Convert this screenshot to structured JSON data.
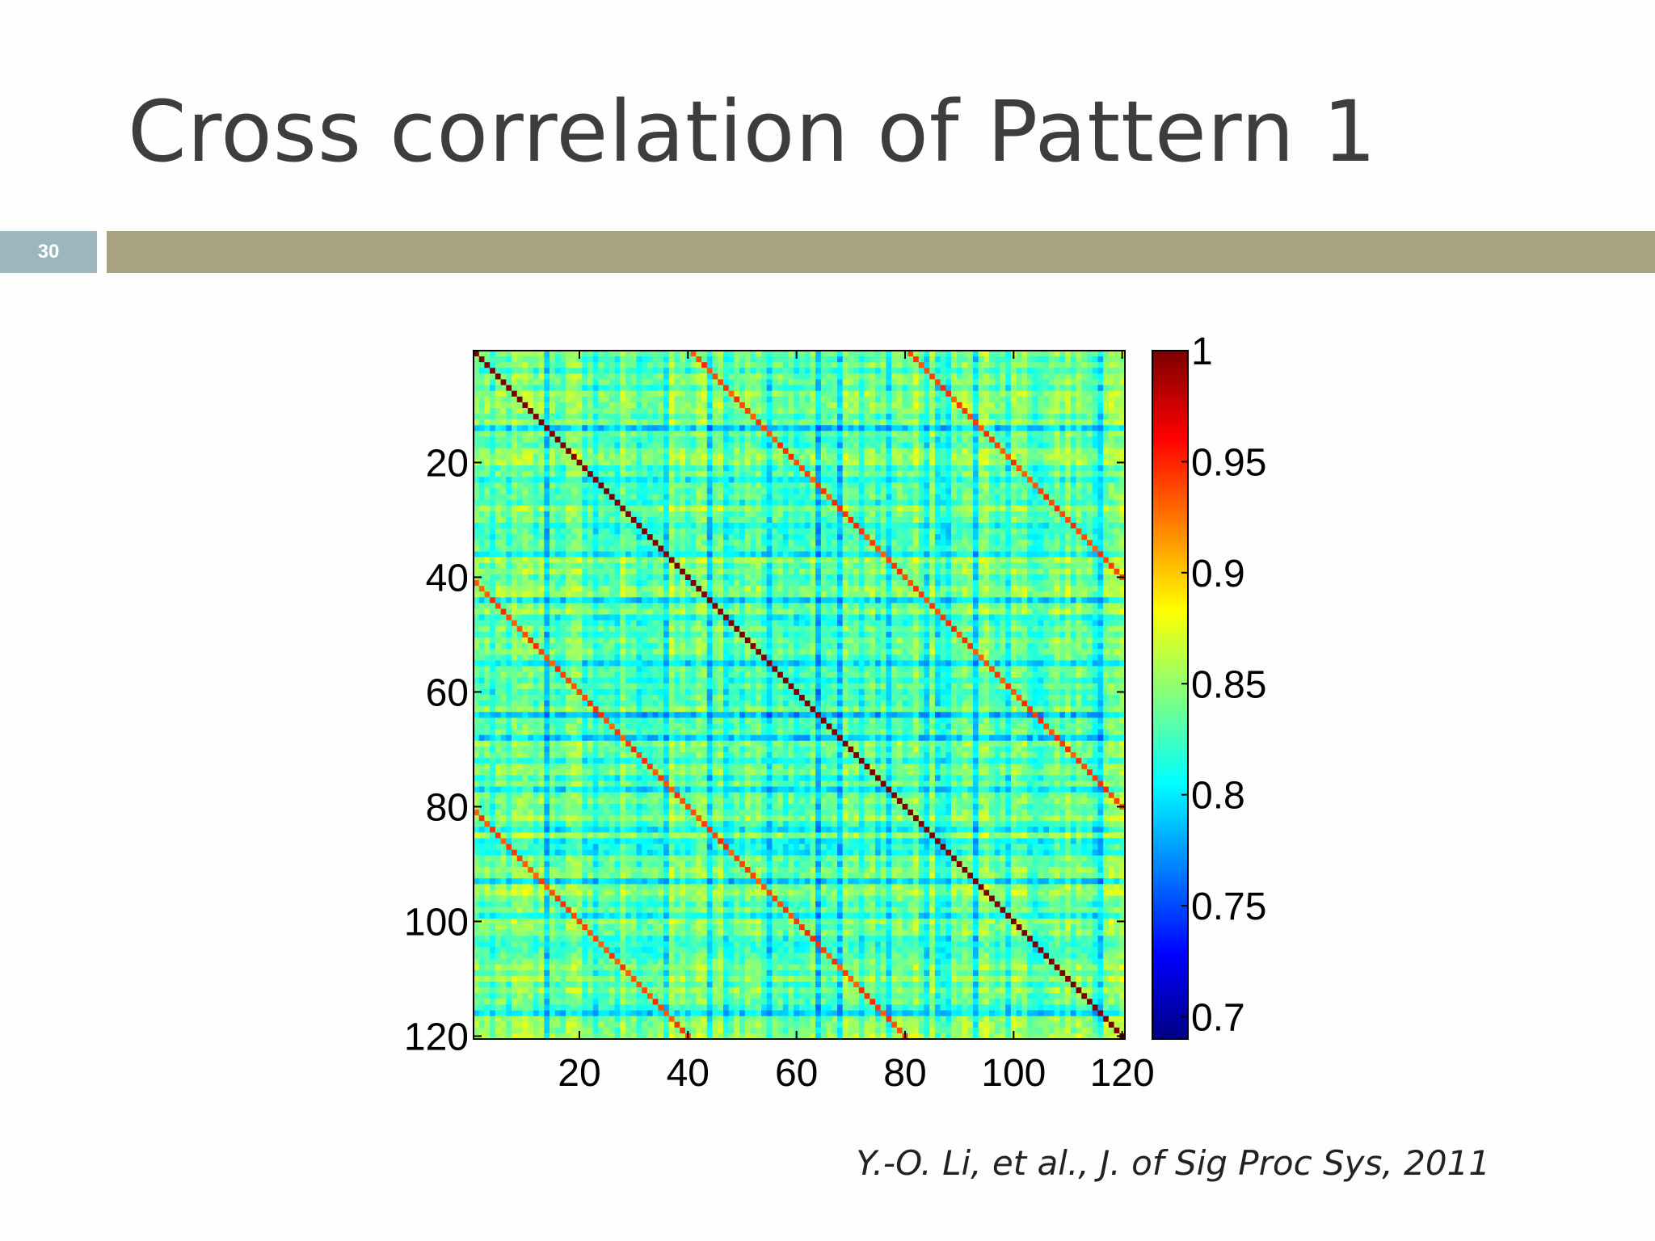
{
  "slide": {
    "title": "Cross correlation of Pattern 1",
    "number": "30",
    "citation": "Y.-O. Li, et al., J. of Sig Proc Sys, 2011",
    "accent_bar_color": "#aaa37f",
    "number_box_color": "#9bb6bf"
  },
  "chart_data": {
    "type": "heatmap",
    "title": "",
    "xlabel": "",
    "ylabel": "",
    "size": 120,
    "x_ticks": [
      20,
      40,
      60,
      80,
      100,
      120
    ],
    "y_ticks": [
      20,
      40,
      60,
      80,
      100,
      120
    ],
    "x_tick_labels": [
      "20",
      "40",
      "60",
      "80",
      "100",
      "120"
    ],
    "y_tick_labels": [
      "20",
      "40",
      "60",
      "80",
      "100",
      "120"
    ],
    "xlim": [
      0.5,
      120.5
    ],
    "ylim": [
      0.5,
      120.5
    ],
    "y_direction": "reversed",
    "colormap": "jet",
    "color_range": [
      0.69,
      1.0
    ],
    "colorbar_ticks": [
      1,
      0.95,
      0.9,
      0.85,
      0.8,
      0.75,
      0.7
    ],
    "colorbar_tick_labels": [
      "1",
      "0.95",
      "0.9",
      "0.85",
      "0.8",
      "0.75",
      "0.7"
    ],
    "background_correlation": 0.84,
    "diagonal_value": 1.0,
    "off_diagonal_bands": [
      {
        "offset": 40,
        "value": 0.94
      },
      {
        "offset": -40,
        "value": 0.94
      },
      {
        "offset": 80,
        "value": 0.94
      },
      {
        "offset": -80,
        "value": 0.94
      }
    ],
    "low_correlation_indices": [
      4,
      14,
      23,
      27,
      31,
      36,
      44,
      47,
      55,
      58,
      64,
      68,
      72,
      77,
      84,
      86,
      88,
      93,
      99,
      104,
      116
    ]
  }
}
